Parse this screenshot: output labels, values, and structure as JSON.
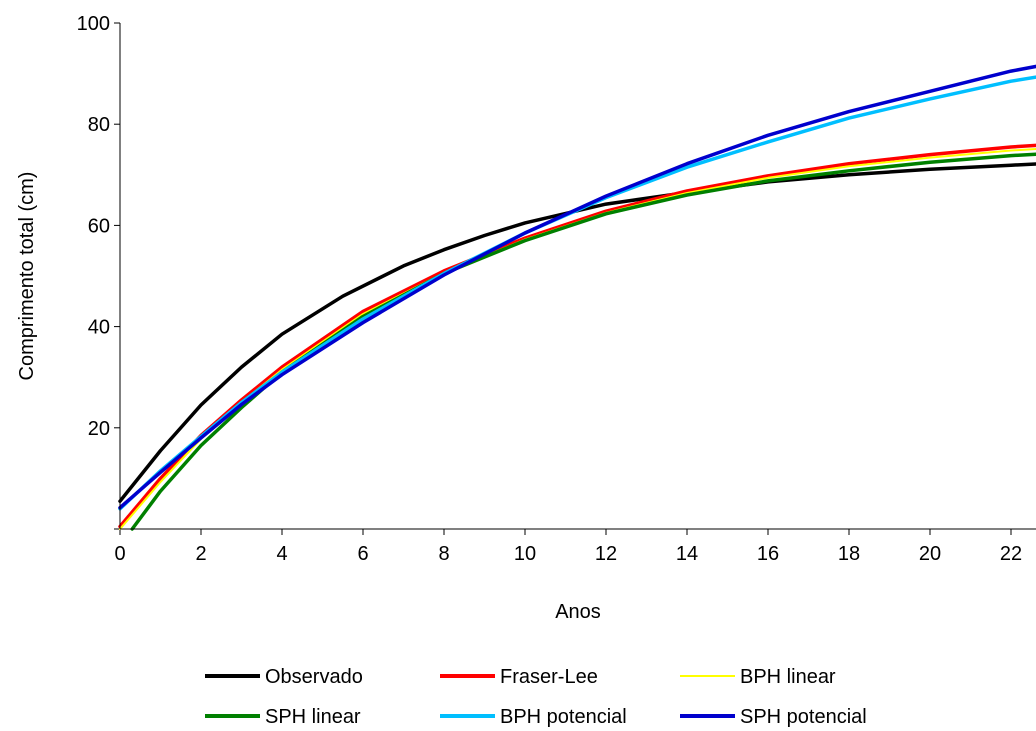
{
  "chart_data": {
    "type": "line",
    "xlabel": "Anos",
    "ylabel": "Comprimento total (cm)",
    "xlim": [
      0,
      23
    ],
    "ylim": [
      0,
      100
    ],
    "x_ticks": [
      0,
      2,
      4,
      6,
      8,
      10,
      12,
      14,
      16,
      18,
      20,
      22
    ],
    "y_ticks": [
      20,
      40,
      60,
      80,
      100
    ],
    "legend_position": "bottom",
    "grid": false,
    "series": [
      {
        "name": "Observado",
        "color": "#000000",
        "x": [
          0,
          1,
          2,
          3,
          4,
          5.5,
          7,
          8,
          9,
          10,
          12,
          14,
          16,
          18,
          20,
          22,
          23
        ],
        "y": [
          5.5,
          15.5,
          24.5,
          32,
          38.5,
          46,
          52,
          55.2,
          58,
          60.5,
          64.2,
          66.5,
          68.6,
          70,
          71.1,
          71.9,
          72.3
        ]
      },
      {
        "name": "Fraser-Lee",
        "color": "#ff0000",
        "x": [
          0,
          1,
          2,
          3,
          4,
          6,
          8,
          10,
          12,
          14,
          16,
          18,
          20,
          22,
          23
        ],
        "y": [
          0.5,
          10,
          18.5,
          25.5,
          32,
          43,
          51,
          57.5,
          62.8,
          66.8,
          69.8,
          72.2,
          74,
          75.5,
          76
        ]
      },
      {
        "name": "BPH linear",
        "color": "#ffff00",
        "x": [
          0,
          1,
          2,
          3,
          4,
          6,
          8,
          10,
          12,
          14,
          16,
          18,
          20,
          22,
          23
        ],
        "y": [
          0,
          9.3,
          17.8,
          25,
          31.5,
          42.5,
          50.6,
          57.2,
          62.5,
          66.4,
          69.4,
          71.7,
          73.4,
          74.8,
          75.3
        ]
      },
      {
        "name": "SPH linear",
        "color": "#008000",
        "x": [
          0.3,
          1,
          2,
          3,
          4,
          6,
          8,
          10,
          12,
          14,
          16,
          18,
          20,
          22,
          23
        ],
        "y": [
          0,
          7.5,
          16.5,
          24,
          31,
          42,
          50.5,
          57,
          62.3,
          66,
          68.8,
          70.8,
          72.5,
          73.8,
          74.2
        ]
      },
      {
        "name": "BPH potencial",
        "color": "#00bfff",
        "x": [
          0,
          1,
          2,
          3,
          4,
          6,
          8,
          10,
          12,
          14,
          16,
          18,
          20,
          22,
          23
        ],
        "y": [
          4,
          11.5,
          18.3,
          25,
          31,
          41.5,
          50.5,
          58.5,
          65.5,
          71.5,
          76.5,
          81.2,
          85,
          88.5,
          89.8
        ]
      },
      {
        "name": "SPH potencial",
        "color": "#0000cd",
        "x": [
          0,
          1,
          2,
          3,
          4,
          6,
          8,
          10,
          12,
          14,
          16,
          18,
          20,
          22,
          23
        ],
        "y": [
          4.2,
          11.2,
          18,
          24.6,
          30.5,
          40.8,
          50.2,
          58.5,
          65.8,
          72.2,
          77.8,
          82.5,
          86.5,
          90.5,
          92
        ]
      }
    ]
  }
}
